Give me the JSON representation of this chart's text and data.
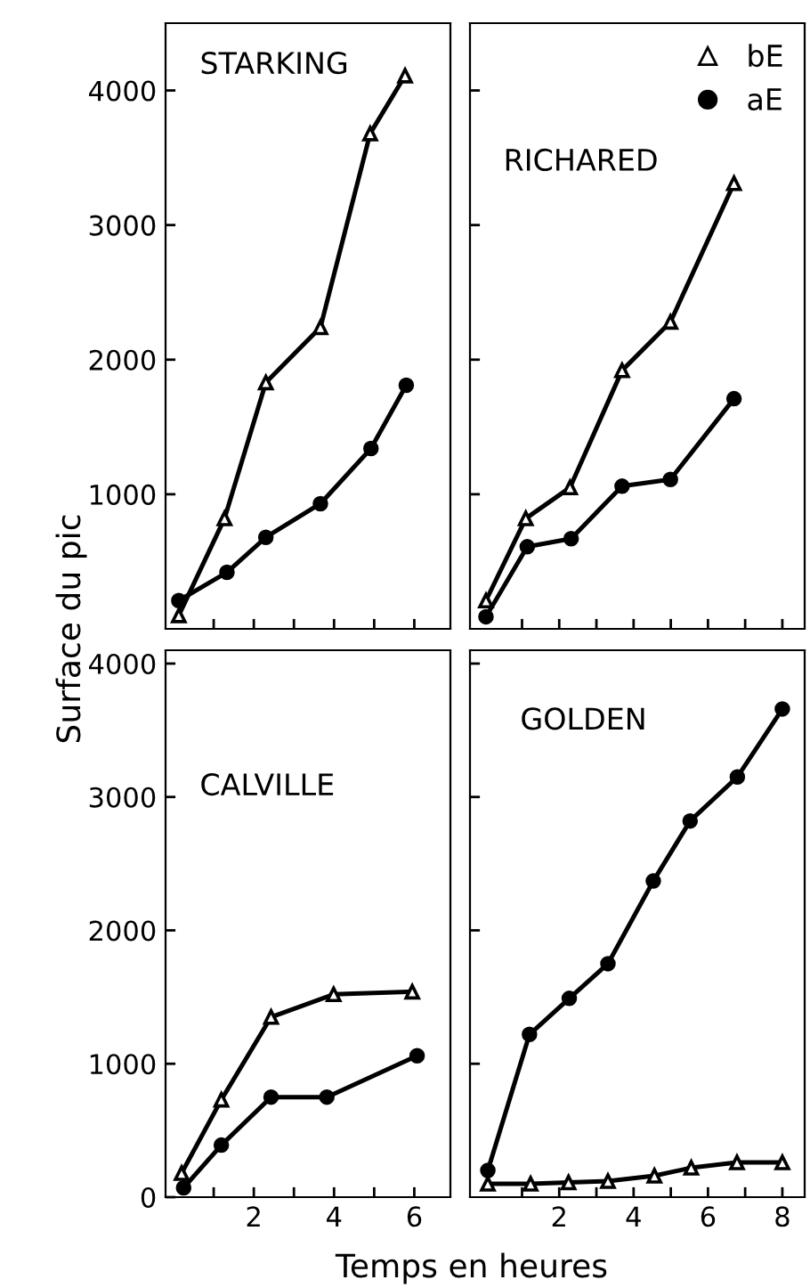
{
  "chart_data": [
    {
      "type": "line",
      "title": "STARKING",
      "ylabel": "Surface du pic",
      "xlim": [
        -0.2,
        6.9
      ],
      "ylim": [
        0,
        4500
      ],
      "xticks": [
        {
          "value": 1,
          "label": null
        },
        {
          "value": 2,
          "label": null
        },
        {
          "value": 3,
          "label": null
        },
        {
          "value": 4,
          "label": null
        },
        {
          "value": 5,
          "label": null
        },
        {
          "value": 6,
          "label": null
        }
      ],
      "yticks": [
        1000,
        2000,
        3000,
        4000
      ],
      "tick_labels": "y",
      "line_style": "solid",
      "grid": false,
      "legend": false,
      "series": [
        {
          "color": "#000000",
          "marker": "triangle",
          "x": [
            0.13,
            1.27,
            2.3,
            3.66,
            4.9,
            5.77
          ],
          "values": [
            100,
            820,
            1830,
            2240,
            3680,
            4110
          ]
        },
        {
          "color": "#000000",
          "marker": "circle",
          "x": [
            0.13,
            1.33,
            2.3,
            3.66,
            4.92,
            5.8
          ],
          "values": [
            210,
            420,
            680,
            930,
            1340,
            1810
          ]
        }
      ]
    },
    {
      "type": "line",
      "title": "RICHARED",
      "xlim": [
        -0.4,
        8.6
      ],
      "ylim": [
        0,
        4500
      ],
      "xticks": [
        {
          "value": 1,
          "label": null
        },
        {
          "value": 2,
          "label": null
        },
        {
          "value": 3,
          "label": null
        },
        {
          "value": 4,
          "label": null
        },
        {
          "value": 5,
          "label": null
        },
        {
          "value": 6,
          "label": null
        },
        {
          "value": 7,
          "label": null
        },
        {
          "value": 8,
          "label": null
        }
      ],
      "yticks": [
        {
          "value": 1000,
          "label": null
        },
        {
          "value": 2000,
          "label": null
        },
        {
          "value": 3000,
          "label": null
        },
        {
          "value": 4000,
          "label": null
        }
      ],
      "tick_labels": false,
      "line_style": "solid",
      "grid": false,
      "legend": "top right",
      "series": [
        {
          "name": "bE",
          "color": "#000000",
          "marker": "triangle",
          "x": [
            0.03,
            1.1,
            2.29,
            3.69,
            4.99,
            6.7
          ],
          "values": [
            210,
            820,
            1050,
            1920,
            2280,
            3310
          ]
        },
        {
          "name": "aE",
          "color": "#000000",
          "marker": "circle",
          "x": [
            0.03,
            1.14,
            2.32,
            3.69,
            4.99,
            6.7
          ],
          "values": [
            90,
            610,
            670,
            1060,
            1110,
            1710
          ]
        }
      ]
    },
    {
      "type": "line",
      "title": "CALVILLE",
      "xlabel": "Temps en heures",
      "xlim": [
        -0.2,
        6.9
      ],
      "ylim": [
        0,
        4100
      ],
      "xticks": [
        {
          "value": 1,
          "label": null
        },
        2,
        {
          "value": 3,
          "label": null
        },
        4,
        {
          "value": 5,
          "label": null
        },
        6
      ],
      "yticks": [
        0,
        1000,
        2000,
        3000,
        4000
      ],
      "line_style": "solid",
      "grid": false,
      "legend": false,
      "series": [
        {
          "color": "#000000",
          "marker": "triangle",
          "x": [
            0.2,
            1.19,
            2.43,
            3.99,
            5.95
          ],
          "values": [
            180,
            730,
            1350,
            1520,
            1540
          ]
        },
        {
          "color": "#000000",
          "marker": "circle",
          "x": [
            0.25,
            1.19,
            2.43,
            3.82,
            6.07
          ],
          "values": [
            70,
            390,
            750,
            750,
            1060
          ]
        }
      ]
    },
    {
      "type": "line",
      "title": "GOLDEN",
      "xlim": [
        -0.4,
        8.6
      ],
      "ylim": [
        0,
        4100
      ],
      "xticks": [
        {
          "value": 1,
          "label": null
        },
        2,
        {
          "value": 3,
          "label": null
        },
        4,
        {
          "value": 5,
          "label": null
        },
        6,
        {
          "value": 7,
          "label": null
        },
        8
      ],
      "yticks": [
        {
          "value": 1000,
          "label": null
        },
        {
          "value": 2000,
          "label": null
        },
        {
          "value": 3000,
          "label": null
        },
        {
          "value": 4000,
          "label": null
        }
      ],
      "tick_labels": "x",
      "line_style": "solid",
      "grid": false,
      "legend": false,
      "series": [
        {
          "color": "#000000",
          "marker": "triangle",
          "x": [
            0.08,
            1.23,
            2.25,
            3.31,
            4.56,
            5.55,
            6.78,
            8.0
          ],
          "values": [
            100,
            100,
            110,
            120,
            160,
            220,
            260,
            260
          ]
        },
        {
          "color": "#000000",
          "marker": "circle",
          "x": [
            0.08,
            1.2,
            2.27,
            3.31,
            4.53,
            5.52,
            6.79,
            8.0
          ],
          "values": [
            200,
            1220,
            1490,
            1750,
            2370,
            2820,
            3150,
            3660
          ]
        }
      ]
    }
  ]
}
